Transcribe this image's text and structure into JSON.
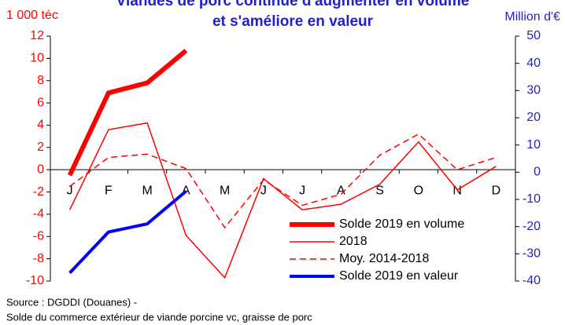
{
  "chart_data": {
    "type": "line",
    "title": "Viandes de porc continue d'augmenter en volume",
    "subtitle": "et s'améliore en valeur",
    "y_label": "1 000 téc",
    "y2_label": "Million d'€",
    "categories": [
      "J",
      "F",
      "M",
      "A",
      "M",
      "J",
      "J",
      "A",
      "S",
      "O",
      "N",
      "D"
    ],
    "ylim": [
      -10,
      12
    ],
    "yticks": [
      -10,
      -8,
      -6,
      -4,
      -2,
      0,
      2,
      4,
      6,
      8,
      10,
      12
    ],
    "y2lim": [
      -40,
      50
    ],
    "y2ticks": [
      -40,
      -30,
      -20,
      -10,
      0,
      10,
      20,
      30,
      40,
      50
    ],
    "series": [
      {
        "name": "Solde 2019 en volume",
        "color": "#ff0000",
        "values": [
          -0.5,
          6.9,
          7.8,
          10.7,
          null,
          null,
          null,
          null,
          null,
          null,
          null,
          null
        ]
      },
      {
        "name": "2018",
        "color": "#ff0000",
        "values": [
          -3.6,
          3.6,
          4.2,
          -5.9,
          -9.7,
          -0.8,
          -3.6,
          -3.1,
          -1.3,
          2.5,
          -1.8,
          0.3
        ]
      },
      {
        "name": "Moy. 2014-2018",
        "color": "#ff0000",
        "values": [
          -1.5,
          1.1,
          1.4,
          0.1,
          -5.2,
          -0.9,
          -3.2,
          -2.2,
          1.3,
          3.2,
          0,
          1.1
        ]
      },
      {
        "name": "Solde 2019 en valeur",
        "color": "#0000ff",
        "axis": "y2",
        "values": [
          -37,
          -22,
          -19,
          -7,
          null,
          null,
          null,
          null,
          null,
          null,
          null,
          null
        ]
      }
    ],
    "source": "Source : DGDDI  (Douanes) -",
    "note": "Solde du commerce extérieur de viande porcine vc, graisse de porc"
  }
}
